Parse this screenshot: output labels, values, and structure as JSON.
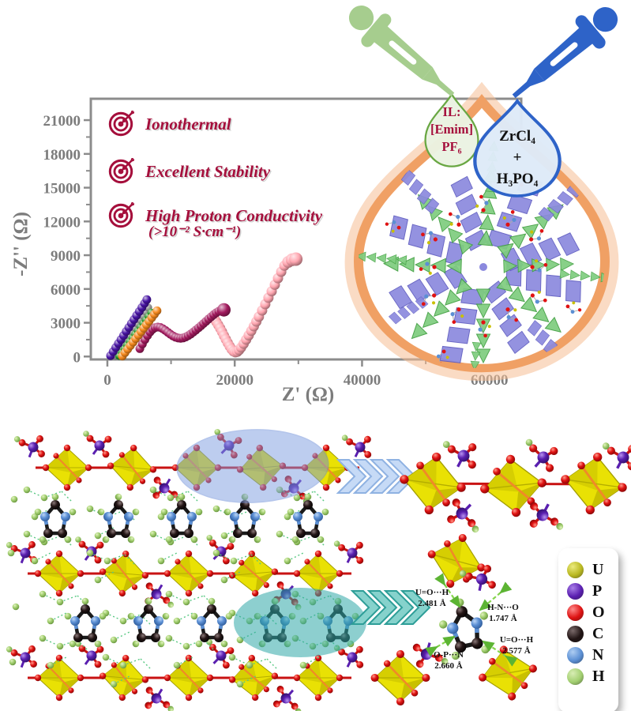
{
  "figure": {
    "bullets": [
      {
        "label": "Ionothermal"
      },
      {
        "label": "Excellent Stability"
      },
      {
        "label": "High Proton Conductivity",
        "sub": "(>10⁻² S·cm⁻¹)"
      }
    ],
    "droplets": {
      "il": {
        "lines": [
          "IL:",
          "[Emim]",
          "PF₆"
        ]
      },
      "precursor": {
        "lines": [
          "ZrCl₄",
          "+",
          "H₃PO₄"
        ]
      }
    },
    "annotations": [
      {
        "bond": "U=O···H",
        "distance": "2.481 Å"
      },
      {
        "bond": "H-N···O",
        "distance": "1.747 Å"
      },
      {
        "bond": "U=O···H",
        "distance": "2.577 Å"
      },
      {
        "bond": "O-P···N",
        "distance": "2.660 Å"
      }
    ],
    "legend": {
      "items": [
        {
          "label": "U",
          "color": "#b9b821",
          "hi": "#eceb7e"
        },
        {
          "label": "P",
          "color": "#5a1fb0",
          "hi": "#a97fe8"
        },
        {
          "label": "O",
          "color": "#dd1111",
          "hi": "#ff8a8a"
        },
        {
          "label": "C",
          "color": "#201414",
          "hi": "#7a6a6a"
        },
        {
          "label": "N",
          "color": "#5b8fd4",
          "hi": "#aecdf2"
        },
        {
          "label": "H",
          "color": "#a2cf70",
          "hi": "#d8edb4"
        }
      ]
    },
    "colors": {
      "accent_crimson": "#a50f3c",
      "axis_gray": "#8c8c8c",
      "label_gray": "#7c7c7c",
      "dropper_green": "#a6cd8e",
      "dropper_blue": "#2e63c8",
      "droplet_green_border": "#69a743",
      "droplet_blue_border": "#2e63c8",
      "big_droplet_glow": "#f0a064",
      "chevron_blue": "#c6daf6",
      "chevron_teal": "#86d2cc"
    }
  },
  "chart_data": {
    "type": "scatter",
    "title": "Nyquist impedance plot",
    "xlabel": "Z' (Ω)",
    "ylabel": "-Z'' (Ω)",
    "xlim": [
      -2600,
      65000
    ],
    "ylim": [
      -260,
      22900
    ],
    "xticks": [
      0,
      20000,
      40000,
      60000
    ],
    "xminor": [
      10000,
      30000,
      50000
    ],
    "yticks": [
      0,
      3000,
      6000,
      9000,
      12000,
      15000,
      18000,
      21000
    ],
    "yminor": [
      1500,
      4500,
      7500,
      10500,
      13500,
      16500,
      19500
    ],
    "grid": false,
    "legend_position": "none",
    "series": [
      {
        "name": "pink",
        "color": "#ffa6b0",
        "marker_radius": 6.5,
        "points": [
          [
            16800,
            3350
          ],
          [
            17100,
            3100
          ],
          [
            17400,
            2820
          ],
          [
            17700,
            2520
          ],
          [
            18000,
            2200
          ],
          [
            18300,
            1870
          ],
          [
            18600,
            1540
          ],
          [
            18900,
            1220
          ],
          [
            19200,
            920
          ],
          [
            19500,
            660
          ],
          [
            19800,
            470
          ],
          [
            20100,
            380
          ],
          [
            20400,
            420
          ],
          [
            20700,
            580
          ],
          [
            21000,
            810
          ],
          [
            21400,
            1140
          ],
          [
            21800,
            1500
          ],
          [
            22200,
            1880
          ],
          [
            22600,
            2280
          ],
          [
            23000,
            2690
          ],
          [
            23400,
            3110
          ],
          [
            23800,
            3540
          ],
          [
            24300,
            4090
          ],
          [
            24800,
            4650
          ],
          [
            25300,
            5220
          ],
          [
            25800,
            5800
          ],
          [
            26300,
            6380
          ],
          [
            26800,
            6960
          ],
          [
            27300,
            7530
          ],
          [
            27800,
            8070
          ],
          [
            28400,
            8400,
            7.5
          ],
          [
            29000,
            8600,
            8
          ],
          [
            29600,
            8650,
            8.5
          ]
        ]
      },
      {
        "name": "magenta",
        "color": "#a21a5e",
        "marker_radius": 5.5,
        "points": [
          [
            5100,
            700
          ],
          [
            5500,
            1110
          ],
          [
            5900,
            1500
          ],
          [
            6300,
            1870
          ],
          [
            6700,
            2180
          ],
          [
            7100,
            2420
          ],
          [
            7500,
            2570
          ],
          [
            7900,
            2620
          ],
          [
            8300,
            2580
          ],
          [
            8700,
            2470
          ],
          [
            9100,
            2320
          ],
          [
            9500,
            2150
          ],
          [
            9900,
            1980
          ],
          [
            10300,
            1830
          ],
          [
            10700,
            1710
          ],
          [
            11100,
            1640
          ],
          [
            11500,
            1620
          ],
          [
            11900,
            1650
          ],
          [
            12300,
            1730
          ],
          [
            12700,
            1850
          ],
          [
            13100,
            2000
          ],
          [
            13500,
            2170
          ],
          [
            13900,
            2350
          ],
          [
            14300,
            2540
          ],
          [
            14700,
            2730
          ],
          [
            15100,
            2930
          ],
          [
            15500,
            3130
          ],
          [
            15900,
            3330
          ],
          [
            16300,
            3530
          ],
          [
            16700,
            3720
          ],
          [
            17100,
            3890
          ],
          [
            17500,
            4020
          ],
          [
            17900,
            4100
          ],
          [
            18300,
            4150,
            8.5
          ]
        ]
      },
      {
        "name": "gray",
        "color": "#9c9c9c",
        "marker_radius": 5,
        "points": [
          [
            1250,
            60
          ],
          [
            1680,
            420
          ],
          [
            2110,
            780
          ],
          [
            2540,
            1140
          ],
          [
            2970,
            1500
          ],
          [
            3400,
            1850
          ],
          [
            3830,
            2210
          ],
          [
            4260,
            2570
          ],
          [
            4690,
            2930
          ],
          [
            5120,
            3280
          ],
          [
            5550,
            3640
          ],
          [
            5980,
            4000
          ],
          [
            6400,
            4350
          ]
        ]
      },
      {
        "name": "green",
        "color": "#1f8f1f",
        "marker_radius": 5,
        "points": [
          [
            1850,
            50
          ],
          [
            2270,
            370
          ],
          [
            2690,
            690
          ],
          [
            3110,
            1010
          ],
          [
            3530,
            1330
          ],
          [
            3950,
            1650
          ],
          [
            4370,
            1970
          ],
          [
            4790,
            2290
          ],
          [
            5210,
            2610
          ],
          [
            5630,
            2930
          ],
          [
            6050,
            3250
          ],
          [
            6470,
            3570
          ],
          [
            6900,
            3900
          ]
        ]
      },
      {
        "name": "orange",
        "color": "#f5891d",
        "marker_radius": 5.5,
        "points": [
          [
            2350,
            40
          ],
          [
            2770,
            350
          ],
          [
            3190,
            660
          ],
          [
            3610,
            970
          ],
          [
            4030,
            1280
          ],
          [
            4450,
            1590
          ],
          [
            4870,
            1900
          ],
          [
            5290,
            2210
          ],
          [
            5710,
            2520
          ],
          [
            6130,
            2830
          ],
          [
            6550,
            3140
          ],
          [
            6970,
            3450
          ],
          [
            7390,
            3760
          ],
          [
            7800,
            4060
          ]
        ]
      },
      {
        "name": "purple",
        "color": "#4713a3",
        "marker_radius": 5.5,
        "points": [
          [
            500,
            80
          ],
          [
            910,
            440
          ],
          [
            1320,
            800
          ],
          [
            1730,
            1160
          ],
          [
            2140,
            1510
          ],
          [
            2550,
            1870
          ],
          [
            2960,
            2230
          ],
          [
            3370,
            2580
          ],
          [
            3780,
            2940
          ],
          [
            4190,
            3290
          ],
          [
            4600,
            3650
          ],
          [
            5010,
            4010
          ],
          [
            5420,
            4360
          ],
          [
            5830,
            4720
          ],
          [
            6200,
            5050
          ]
        ]
      }
    ]
  }
}
